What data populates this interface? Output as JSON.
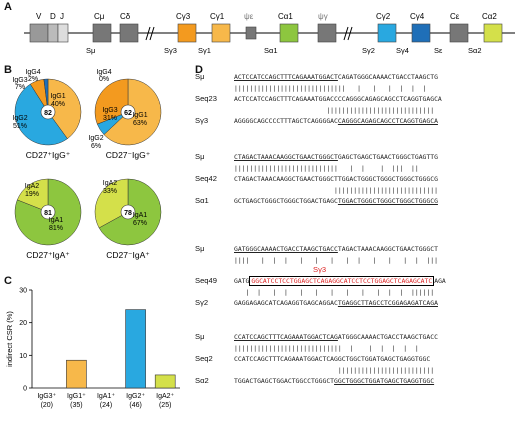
{
  "panels": {
    "A": "A",
    "B": "B",
    "C": "C",
    "D": "D"
  },
  "locus": {
    "seg_labels": [
      "V",
      "D",
      "J",
      "Cμ",
      "Cδ",
      "Cγ3",
      "Cγ1",
      "ψε",
      "Cα1",
      "ψγ",
      "Cγ2",
      "Cγ4",
      "Cε",
      "Cα2"
    ],
    "switch_labels": [
      "Sμ",
      "Sγ3",
      "Sγ1",
      "Sα1",
      "Sγ2",
      "Sγ4",
      "Sε",
      "Sα2"
    ],
    "colors": {
      "gamma3": "#f39a1f",
      "gamma1": "#f7b84a",
      "alpha1": "#8dc63f",
      "gamma2": "#29a8e0",
      "gamma4": "#1f6fb8",
      "alpha2": "#d4e04a",
      "grey": "#777777",
      "light_grey": "#cfcfcf"
    }
  },
  "pies": [
    {
      "title": "CD27⁺IgG⁺",
      "n": "82",
      "slices": [
        {
          "label": "IgG1",
          "pct": "40%",
          "value": 40,
          "color": "#f7b84a"
        },
        {
          "label": "IgG2",
          "pct": "51%",
          "value": 51,
          "color": "#29a8e0"
        },
        {
          "label": "IgG3",
          "pct": "7%",
          "value": 7,
          "color": "#f39a1f"
        },
        {
          "label": "IgG4",
          "pct": "2%",
          "value": 2,
          "color": "#1f6fb8"
        }
      ]
    },
    {
      "title": "CD27⁻IgG⁺",
      "n": "62",
      "slices": [
        {
          "label": "IgG1",
          "pct": "63%",
          "value": 63,
          "color": "#f7b84a"
        },
        {
          "label": "IgG2",
          "pct": "6%",
          "value": 6,
          "color": "#29a8e0"
        },
        {
          "label": "IgG3",
          "pct": "31%",
          "value": 31,
          "color": "#f39a1f"
        },
        {
          "label": "IgG4",
          "pct": "0%",
          "value": 0,
          "color": "#1f6fb8"
        }
      ]
    },
    {
      "title": "CD27⁺IgA⁺",
      "n": "81",
      "slices": [
        {
          "label": "IgA1",
          "pct": "81%",
          "value": 81,
          "color": "#8dc63f"
        },
        {
          "label": "IgA2",
          "pct": "19%",
          "value": 19,
          "color": "#d4e04a"
        }
      ]
    },
    {
      "title": "CD27⁻IgA⁺",
      "n": "78",
      "slices": [
        {
          "label": "IgA1",
          "pct": "67%",
          "value": 67,
          "color": "#8dc63f"
        },
        {
          "label": "IgA2",
          "pct": "33%",
          "value": 33,
          "color": "#d4e04a"
        }
      ]
    }
  ],
  "chart_data": {
    "type": "bar",
    "ylabel": "indirect CSR (%)",
    "ylim": [
      0,
      30
    ],
    "yticks": [
      "0",
      "10",
      "20",
      "30"
    ],
    "categories": [
      "IgG3⁺",
      "IgG1⁺",
      "IgA1⁺",
      "IgG2⁺",
      "IgA2⁺"
    ],
    "counts": [
      "(20)",
      "(35)",
      "(24)",
      "(46)",
      "(25)"
    ],
    "values": [
      0,
      8.5,
      0,
      24,
      4
    ],
    "colors": [
      "#f39a1f",
      "#f7b84a",
      "#8dc63f",
      "#29a8e0",
      "#d4e04a"
    ]
  },
  "alignments": [
    {
      "rows": [
        {
          "label": "Sμ",
          "seq": "ACTCCATCCAGCTTTCAGAAATGGACTCAGATGGGCAAAACTGACCTAAGCTG"
        },
        {
          "label": "",
          "seq": "|||||||||||||||||||||||||||||   |   |   |  |  |  |"
        },
        {
          "label": "Seq23",
          "seq": "ACTCCATCCAGCTTTCAGAAATGGACCCCAGGGCAGAGCAGCCTCAGGTGAGCA"
        },
        {
          "label": "",
          "seq": "                        ||||||||||||||||||||||||||||"
        },
        {
          "label": "Sγ3",
          "seq": "AGGGGCAGCCCCTTTAGCTCAGGGGACCAGGGCAGAGCAGCCTCAGGTGAGCA"
        }
      ]
    },
    {
      "rows": [
        {
          "label": "Sμ",
          "seq": "CTAGACTAAACAAGGCTGAACTGGGCTGAGCTGAGCTGAACTGGGCTGAGTTG"
        },
        {
          "label": "",
          "seq": "|||||||||||||||||||||||||||   |  |    |  |||  ||"
        },
        {
          "label": "Seq42",
          "seq": "CTAGACTAAACAAGGCTGAACTGGGCTTGGACTGGGCTGGGCTGGGCTGGGCG"
        },
        {
          "label": "",
          "seq": "                          |||||||||||||||||||||||||||"
        },
        {
          "label": "Sα1",
          "seq": "GCTGAGCTGGGCTGGGCTGGACTGAGCTGGACTGGGCTGGGCTGGGCTGGGCG"
        }
      ]
    },
    {
      "rows": [
        {
          "label": "Sμ",
          "seq": "GATGGGCAAAACTGACCTAAGCTGACCTAGACTAAACAAGGCTGAACTGGGCT"
        },
        {
          "label": "",
          "seq": "||||   |  |  |   |   |   |   |  |   |   |   |  |  |||"
        },
        {
          "label": "Seq49",
          "seq": "GATGGGCATCCTCCTGGAGCTCAGAGGCATCCTCCTGGAGCTCAGAGCATCAGA"
        },
        {
          "label": "",
          "seq": "   |  |   |  |   |   |   |   |   |   |  |  |  ||||||"
        },
        {
          "label": "Sγ2",
          "seq": "GAGGAGAGCATCAGAGGTGAGCAGGACTGAGGCTTAGCCTCGGAGAGATCAGA"
        }
      ],
      "insert_label": "Sγ3"
    },
    {
      "rows": [
        {
          "label": "Sμ",
          "seq": "CCATCCAGCTTTCAGAAATGGACTCAGATGGGCAAAACTGACCTAAGCTGACC"
        },
        {
          "label": "",
          "seq": "||||||||||||||||||||||||||||  |    |  |  |  |  |"
        },
        {
          "label": "Seq2",
          "seq": "CCATCCAGCTTTCAGAAATGGACTCAGGCTGGCTGGATGAGCTGAGGTGGC"
        },
        {
          "label": "",
          "seq": "                           |||||||||||||||||||||||||"
        },
        {
          "label": "Sα2",
          "seq": "TGGACTGAGCTGGACTGGCCTGGGCTGGCTGGGCTGGATGAGCTGAGGTGGC"
        }
      ]
    }
  ]
}
